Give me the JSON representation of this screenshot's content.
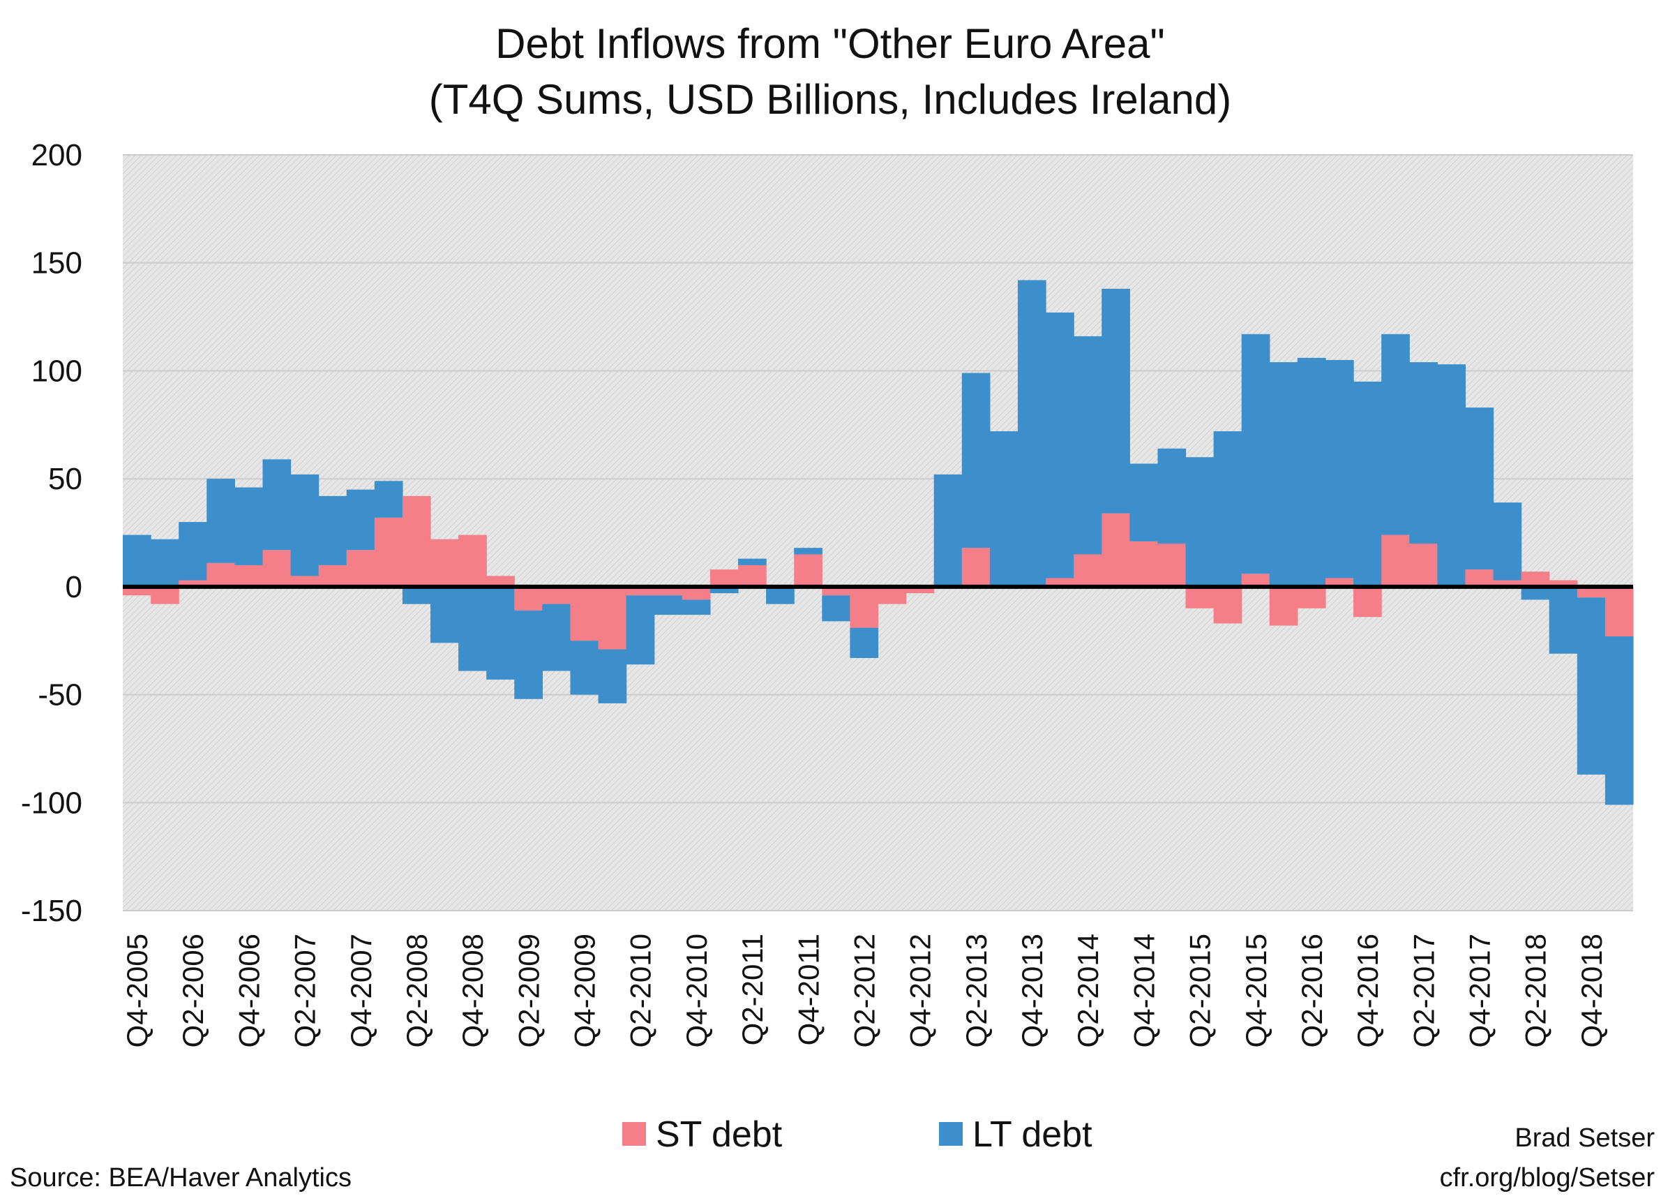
{
  "chart_data": {
    "type": "bar",
    "stacked": true,
    "title": "Debt Inflows from \"Other Euro Area\"",
    "subtitle": "(T4Q Sums, USD Billions, Includes Ireland)",
    "ylim": [
      -150,
      200
    ],
    "yticks": [
      200,
      150,
      100,
      50,
      0,
      -50,
      -100,
      -150
    ],
    "grid": true,
    "legend_position": "bottom-center",
    "categories": [
      "Q4-2005",
      "Q1-2006",
      "Q2-2006",
      "Q3-2006",
      "Q4-2006",
      "Q1-2007",
      "Q2-2007",
      "Q3-2007",
      "Q4-2007",
      "Q1-2008",
      "Q2-2008",
      "Q3-2008",
      "Q4-2008",
      "Q1-2009",
      "Q2-2009",
      "Q3-2009",
      "Q4-2009",
      "Q1-2010",
      "Q2-2010",
      "Q3-2010",
      "Q4-2010",
      "Q1-2011",
      "Q2-2011",
      "Q3-2011",
      "Q4-2011",
      "Q1-2012",
      "Q2-2012",
      "Q3-2012",
      "Q4-2012",
      "Q1-2013",
      "Q2-2013",
      "Q3-2013",
      "Q4-2013",
      "Q1-2014",
      "Q2-2014",
      "Q3-2014",
      "Q4-2014",
      "Q1-2015",
      "Q2-2015",
      "Q3-2015",
      "Q4-2015",
      "Q1-2016",
      "Q2-2016",
      "Q3-2016",
      "Q4-2016",
      "Q1-2017",
      "Q2-2017",
      "Q3-2017",
      "Q4-2017",
      "Q1-2018",
      "Q2-2018",
      "Q3-2018",
      "Q4-2018",
      "Q1-2019"
    ],
    "tick_labels": [
      "Q4-2005",
      "",
      "Q2-2006",
      "",
      "Q4-2006",
      "",
      "Q2-2007",
      "",
      "Q4-2007",
      "",
      "Q2-2008",
      "",
      "Q4-2008",
      "",
      "Q2-2009",
      "",
      "Q4-2009",
      "",
      "Q2-2010",
      "",
      "Q4-2010",
      "",
      "Q2-2011",
      "",
      "Q4-2011",
      "",
      "Q2-2012",
      "",
      "Q4-2012",
      "",
      "Q2-2013",
      "",
      "Q4-2013",
      "",
      "Q2-2014",
      "",
      "Q4-2014",
      "",
      "Q2-2015",
      "",
      "Q4-2015",
      "",
      "Q2-2016",
      "",
      "Q4-2016",
      "",
      "Q2-2017",
      "",
      "Q4-2017",
      "",
      "Q2-2018",
      "",
      "Q4-2018",
      ""
    ],
    "series": [
      {
        "name": "ST debt",
        "color": "#f47f89",
        "values": [
          -4,
          -8,
          3,
          11,
          10,
          17,
          5,
          10,
          17,
          32,
          42,
          22,
          24,
          5,
          -11,
          -8,
          -25,
          -29,
          -4,
          -4,
          -6,
          8,
          10,
          0,
          15,
          -4,
          -19,
          -8,
          -3,
          0,
          18,
          0,
          0,
          4,
          15,
          34,
          21,
          20,
          -10,
          -17,
          6,
          -18,
          -10,
          4,
          -14,
          24,
          20,
          0,
          8,
          3,
          7,
          3,
          -5,
          -23
        ]
      },
      {
        "name": "LT debt",
        "color": "#3c8fcb",
        "values": [
          24,
          22,
          27,
          39,
          36,
          42,
          47,
          32,
          28,
          17,
          -8,
          -26,
          -39,
          -43,
          -41,
          -31,
          -25,
          -25,
          -32,
          -9,
          -7,
          -3,
          3,
          -8,
          3,
          -12,
          -14,
          0,
          0,
          52,
          81,
          72,
          142,
          123,
          101,
          104,
          36,
          44,
          60,
          72,
          111,
          104,
          106,
          101,
          95,
          93,
          84,
          103,
          75,
          36,
          -6,
          -31,
          -82,
          -78
        ]
      }
    ],
    "legend": [
      "ST debt",
      "LT debt"
    ],
    "source": "Source: BEA/Haver Analytics",
    "author": "Brad Setser",
    "url": "cfr.org/blog/Setser"
  },
  "colors": {
    "plot_background": "#e4e4e4",
    "zero_line": "#000000",
    "grid": "#cccccc"
  }
}
